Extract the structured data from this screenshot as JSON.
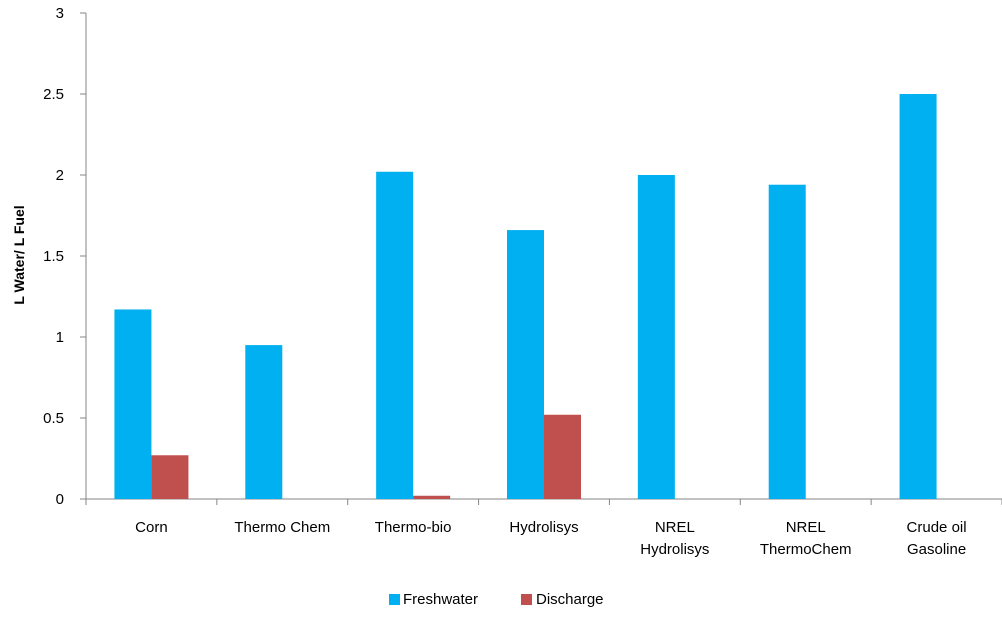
{
  "chart_data": {
    "type": "bar",
    "title": "",
    "xlabel": "",
    "ylabel": "L Water/  L  Fuel",
    "ylim": [
      0,
      3
    ],
    "yticks": [
      "0",
      "0.5",
      "1",
      "1.5",
      "2",
      "2.5",
      "3"
    ],
    "categories": [
      [
        "Corn"
      ],
      [
        "Thermo Chem"
      ],
      [
        "Thermo-bio"
      ],
      [
        "Hydrolisys"
      ],
      [
        "NREL",
        "Hydrolisys"
      ],
      [
        "NREL",
        "ThermoChem"
      ],
      [
        "Crude oil",
        "Gasoline"
      ]
    ],
    "series": [
      {
        "name": "Freshwater",
        "color": "#00b0f0",
        "values": [
          1.17,
          0.95,
          2.02,
          1.66,
          2.0,
          1.94,
          2.5
        ]
      },
      {
        "name": "Discharge",
        "color": "#c0504d",
        "values": [
          0.27,
          0,
          0.02,
          0.52,
          0,
          0,
          0
        ]
      }
    ],
    "grid": false,
    "legend_position": "bottom"
  }
}
